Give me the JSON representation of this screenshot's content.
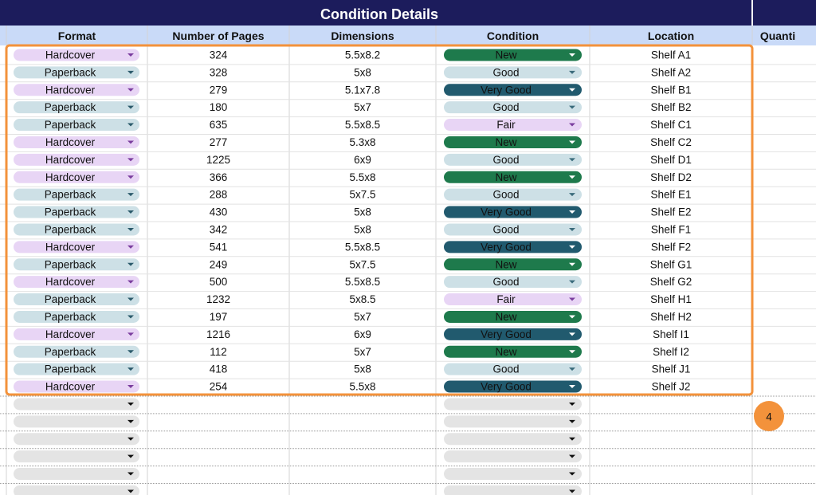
{
  "header": {
    "title": "Condition Details"
  },
  "columns": [
    "Format",
    "Number of Pages",
    "Dimensions",
    "Condition",
    "Location",
    "Quanti"
  ],
  "rows": [
    [
      "Hardcover",
      324,
      "5.5x8.2",
      "New",
      "Shelf A1"
    ],
    [
      "Paperback",
      328,
      "5x8",
      "Good",
      "Shelf A2"
    ],
    [
      "Hardcover",
      279,
      "5.1x7.8",
      "Very Good",
      "Shelf B1"
    ],
    [
      "Paperback",
      180,
      "5x7",
      "Good",
      "Shelf B2"
    ],
    [
      "Paperback",
      635,
      "5.5x8.5",
      "Fair",
      "Shelf C1"
    ],
    [
      "Hardcover",
      277,
      "5.3x8",
      "New",
      "Shelf C2"
    ],
    [
      "Hardcover",
      1225,
      "6x9",
      "Good",
      "Shelf D1"
    ],
    [
      "Hardcover",
      366,
      "5.5x8",
      "New",
      "Shelf D2"
    ],
    [
      "Paperback",
      288,
      "5x7.5",
      "Good",
      "Shelf E1"
    ],
    [
      "Paperback",
      430,
      "5x8",
      "Very Good",
      "Shelf E2"
    ],
    [
      "Paperback",
      342,
      "5x8",
      "Good",
      "Shelf F1"
    ],
    [
      "Hardcover",
      541,
      "5.5x8.5",
      "Very Good",
      "Shelf F2"
    ],
    [
      "Paperback",
      249,
      "5x7.5",
      "New",
      "Shelf G1"
    ],
    [
      "Hardcover",
      500,
      "5.5x8.5",
      "Good",
      "Shelf G2"
    ],
    [
      "Paperback",
      1232,
      "5x8.5",
      "Fair",
      "Shelf H1"
    ],
    [
      "Paperback",
      197,
      "5x7",
      "New",
      "Shelf H2"
    ],
    [
      "Hardcover",
      1216,
      "6x9",
      "Very Good",
      "Shelf I1"
    ],
    [
      "Paperback",
      112,
      "5x7",
      "New",
      "Shelf I2"
    ],
    [
      "Paperback",
      418,
      "5x8",
      "Good",
      "Shelf J1"
    ],
    [
      "Hardcover",
      254,
      "5.5x8",
      "Very Good",
      "Shelf J2"
    ]
  ],
  "callout": "4"
}
